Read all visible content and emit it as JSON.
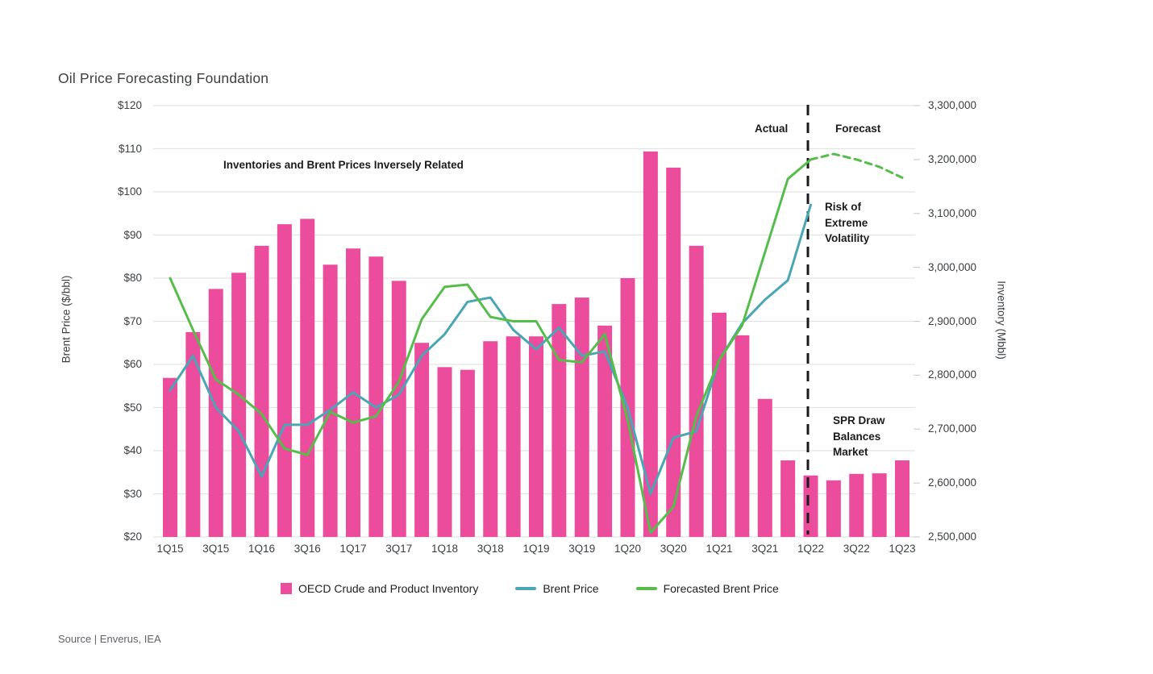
{
  "page": {
    "title": "Oil Price Forecasting Foundation",
    "source": "Source | Enverus, IEA"
  },
  "annotations": {
    "inverse_note": "Inventories and Brent Prices Inversely Related",
    "actual_label": "Actual",
    "forecast_label": "Forecast",
    "risk_note": "Risk of Extreme Volatility",
    "spr_note": "SPR Draw Balances Market"
  },
  "legend": [
    {
      "label": "OECD Crude and Product Inventory",
      "marker": "square",
      "color": "#EC4C9C"
    },
    {
      "label": "Brent Price",
      "marker": "line",
      "color": "#4AA5B4"
    },
    {
      "label": "Forecasted Brent Price",
      "marker": "line",
      "color": "#55BE4B"
    }
  ],
  "chart_data": {
    "type": "combo-bar-line",
    "title": "Oil Price Forecasting Foundation",
    "grid": "horizontal-light-gray",
    "legend_position": "bottom",
    "quarters": [
      "1Q15",
      "2Q15",
      "3Q15",
      "4Q15",
      "1Q16",
      "2Q16",
      "3Q16",
      "4Q16",
      "1Q17",
      "2Q17",
      "3Q17",
      "4Q17",
      "1Q18",
      "2Q18",
      "3Q18",
      "4Q18",
      "1Q19",
      "2Q19",
      "3Q19",
      "4Q19",
      "1Q20",
      "2Q20",
      "3Q20",
      "4Q20",
      "1Q21",
      "2Q21",
      "3Q21",
      "4Q21",
      "1Q22",
      "2Q22",
      "3Q22",
      "4Q22",
      "1Q23"
    ],
    "x_tick_labels": [
      "1Q15",
      "3Q15",
      "1Q16",
      "3Q16",
      "1Q17",
      "3Q17",
      "1Q18",
      "3Q18",
      "1Q19",
      "3Q19",
      "1Q20",
      "3Q20",
      "1Q21",
      "3Q21",
      "1Q22",
      "3Q22",
      "1Q23"
    ],
    "left_axis": {
      "title": "Brent Price ($/bbl)",
      "min": 20,
      "max": 120,
      "tick_step": 10,
      "ticks": [
        "$120",
        "$110",
        "$100",
        "$90",
        "$80",
        "$70",
        "$60",
        "$50",
        "$40",
        "$30",
        "$20"
      ]
    },
    "right_axis": {
      "title": "Inventory (Mbbl)",
      "min": 2500000,
      "max": 3300000,
      "tick_step": 100000,
      "ticks": [
        "3,300,000",
        "3,200,000",
        "3,100,000",
        "3,000,000",
        "2,900,000",
        "2,800,000",
        "2,700,000",
        "2,600,000",
        "2,500,000"
      ]
    },
    "divider": {
      "type": "vertical-dashed-black",
      "at_quarter": "1Q22"
    },
    "series": [
      {
        "name": "OECD Crude and Product Inventory",
        "type": "bar",
        "axis": "right",
        "color": "#EC4C9C",
        "values": [
          2795000,
          2880000,
          2960000,
          2990000,
          3040000,
          3080000,
          3090000,
          3005000,
          3035000,
          3020000,
          2975000,
          2860000,
          2815000,
          2810000,
          2863000,
          2872000,
          2872000,
          2932000,
          2944000,
          2892000,
          2980000,
          3215000,
          3185000,
          3040000,
          2916000,
          2874000,
          2756000,
          2642000,
          2614000,
          2605000,
          2617000,
          2618000,
          2642000
        ]
      },
      {
        "name": "Brent Price",
        "type": "line",
        "axis": "left",
        "color": "#4AA5B4",
        "values": [
          54,
          62,
          50,
          44.5,
          34,
          46,
          46,
          49.5,
          53.5,
          50,
          53,
          62,
          67,
          74.5,
          75.5,
          68,
          63.5,
          68.5,
          62,
          63,
          50,
          30,
          43,
          44.5,
          61,
          69.5,
          75,
          79.5,
          97,
          null,
          null,
          null,
          null
        ]
      },
      {
        "name": "Forecasted Brent Price",
        "type": "line",
        "axis": "left",
        "color": "#55BE4B",
        "dashed_from_index": 28,
        "values": [
          80,
          68,
          56.5,
          53,
          48.5,
          40.5,
          39,
          49,
          46.5,
          48,
          56,
          70.5,
          78,
          78.5,
          71,
          70,
          70,
          61,
          60.5,
          67,
          47,
          21,
          27,
          48,
          61,
          69,
          86,
          103,
          107.5,
          108.8,
          107.5,
          105.8,
          103.3
        ]
      }
    ]
  }
}
